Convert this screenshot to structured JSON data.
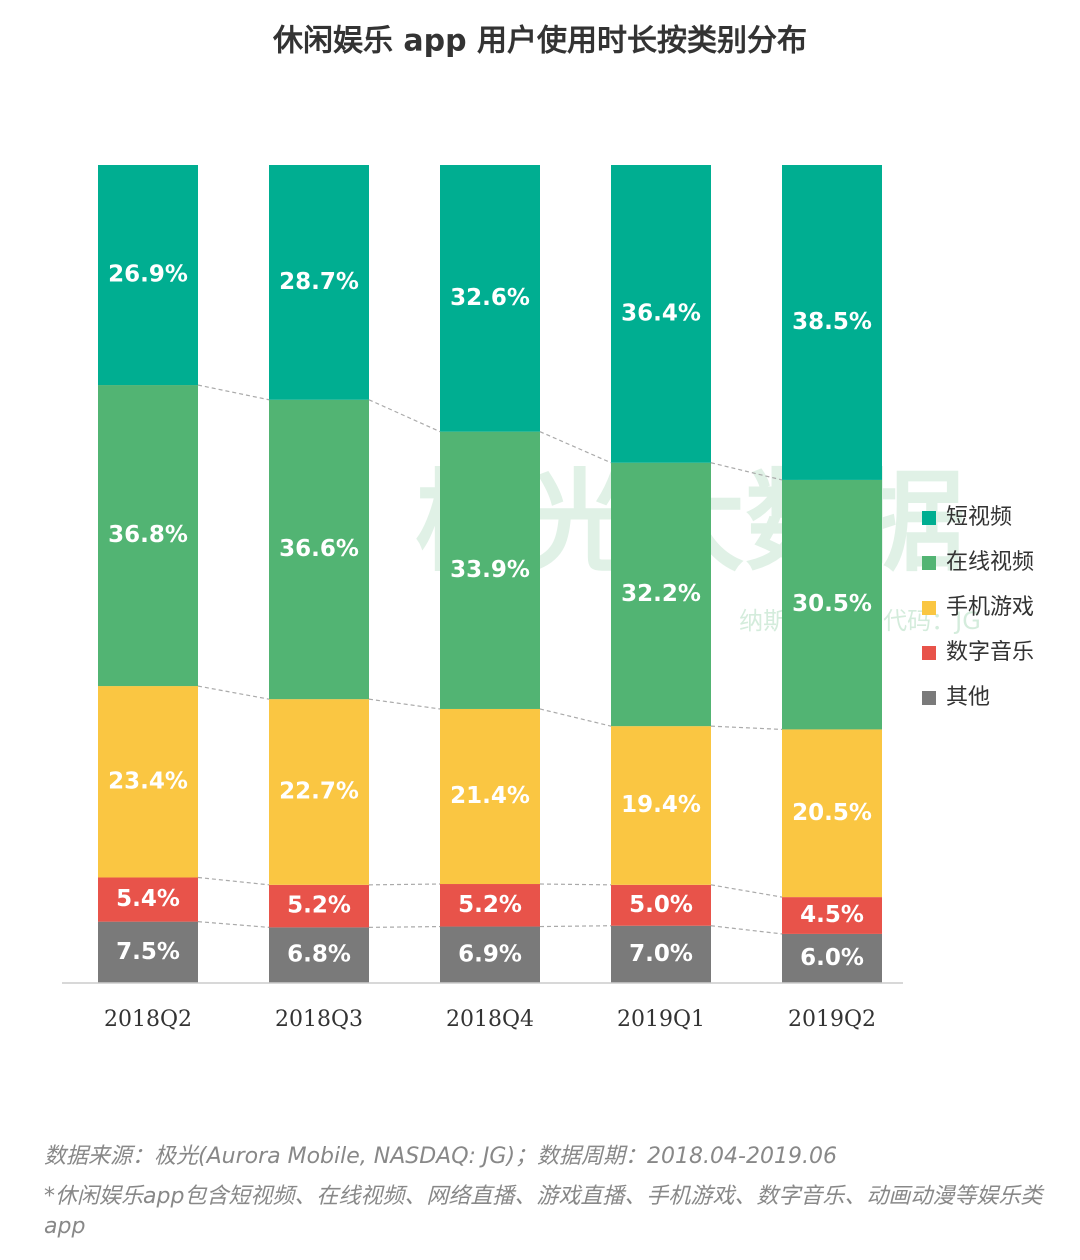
{
  "chart_data": {
    "type": "stacked_bar",
    "title": "休闲娱乐 app 用户使用时长按类别分布",
    "categories": [
      "2018Q2",
      "2018Q3",
      "2018Q4",
      "2019Q1",
      "2019Q2"
    ],
    "ylim": [
      0,
      100
    ],
    "legend_position": "right",
    "series": [
      {
        "name": "短视频",
        "color": "#00ae91",
        "values": [
          26.9,
          28.7,
          32.6,
          36.4,
          38.5
        ],
        "value_labels": [
          "26.9%",
          "28.7%",
          "32.6%",
          "36.4%",
          "38.5%"
        ]
      },
      {
        "name": "在线视频",
        "color": "#52b473",
        "values": [
          36.8,
          36.6,
          33.9,
          32.2,
          30.5
        ],
        "value_labels": [
          "36.8%",
          "36.6%",
          "33.9%",
          "32.2%",
          "30.5%"
        ]
      },
      {
        "name": "手机游戏",
        "color": "#fac642",
        "values": [
          23.4,
          22.7,
          21.4,
          19.4,
          20.5
        ],
        "value_labels": [
          "23.4%",
          "22.7%",
          "21.4%",
          "19.4%",
          "20.5%"
        ]
      },
      {
        "name": "数字音乐",
        "color": "#e8534a",
        "values": [
          5.4,
          5.2,
          5.2,
          5.0,
          4.5
        ],
        "value_labels": [
          "5.4%",
          "5.2%",
          "5.2%",
          "5.0%",
          "4.5%"
        ]
      },
      {
        "name": "其他",
        "color": "#7a7a7a",
        "values": [
          7.5,
          6.8,
          6.9,
          7.0,
          6.0
        ],
        "value_labels": [
          "7.5%",
          "6.8%",
          "6.9%",
          "7.0%",
          "6.0%"
        ]
      }
    ],
    "watermark": [
      "极光大数据",
      "纳斯达克股票代码：JG"
    ],
    "notes": [
      "数据来源：极光(Aurora Mobile, NASDAQ: JG)；数据周期：2018.04-2019.06",
      "*休闲娱乐app包含短视频、在线视频、网络直播、游戏直播、手机游戏、数字音乐、动画动漫等娱乐类app"
    ]
  }
}
